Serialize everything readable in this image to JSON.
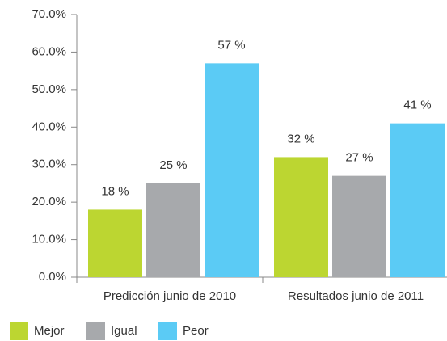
{
  "chart_data": {
    "type": "bar",
    "categories": [
      "Predicción junio de 2010",
      "Resultados junio de 2011"
    ],
    "series": [
      {
        "name": "Mejor",
        "color": "#bcd631",
        "values": [
          18,
          32
        ],
        "value_labels": [
          "18 %",
          "32 %"
        ]
      },
      {
        "name": "Igual",
        "color": "#a7a9ac",
        "values": [
          25,
          27
        ],
        "value_labels": [
          "25 %",
          "27 %"
        ]
      },
      {
        "name": "Peor",
        "color": "#5bcbf5",
        "values": [
          57,
          41
        ],
        "value_labels": [
          "57 %",
          "41 %"
        ]
      }
    ],
    "ylim": [
      0,
      70
    ],
    "yticks": [
      {
        "value": 0,
        "label": "0.0%"
      },
      {
        "value": 10,
        "label": "10.0%"
      },
      {
        "value": 20,
        "label": "20.0%"
      },
      {
        "value": 30,
        "label": "30.0%"
      },
      {
        "value": 40,
        "label": "40.0%"
      },
      {
        "value": 50,
        "label": "50.0%"
      },
      {
        "value": 60,
        "label": "60.0%"
      },
      {
        "value": 70,
        "label": "70.0%"
      }
    ],
    "legend": "bottom-left"
  }
}
